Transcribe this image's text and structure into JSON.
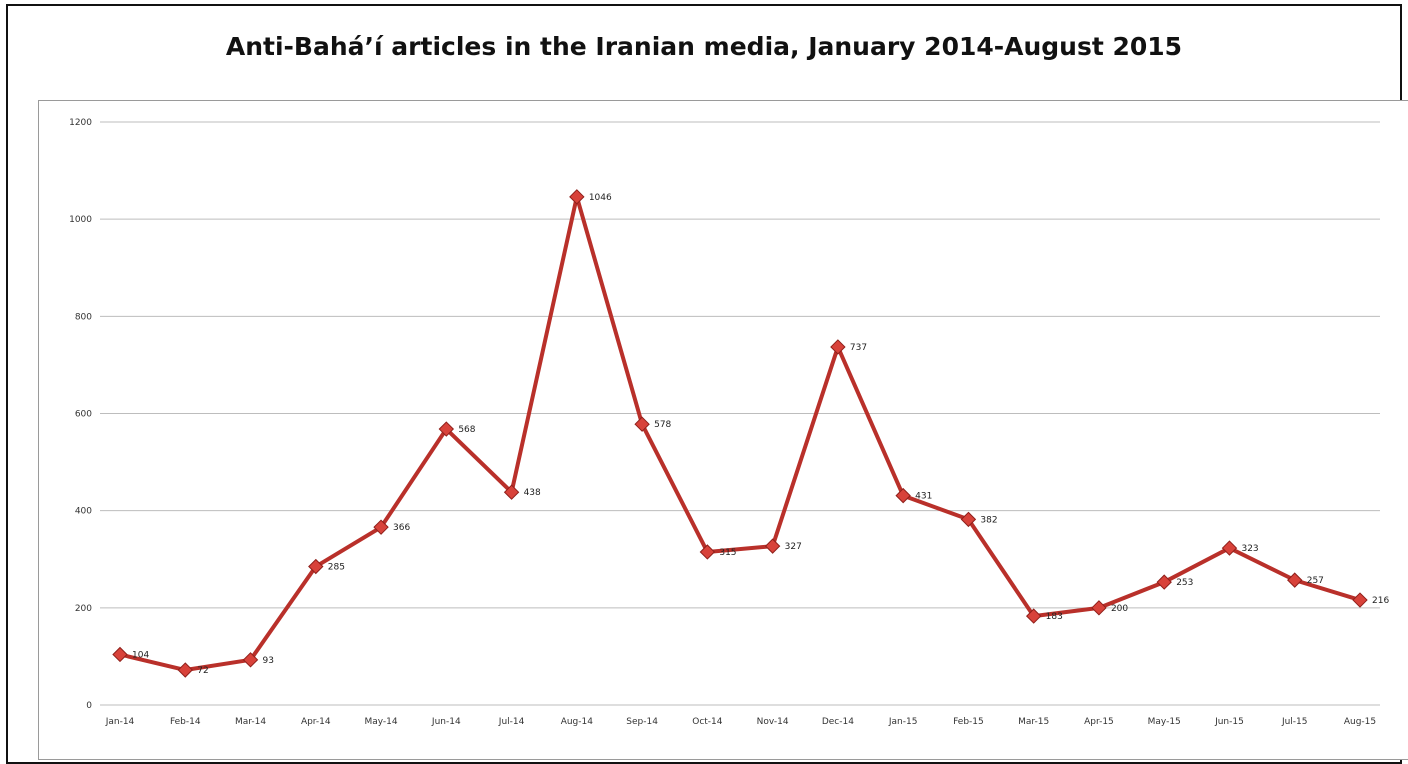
{
  "chart_data": {
    "type": "line",
    "title": "Anti-Bahá’í articles in the Iranian media, January 2014-August 2015",
    "xlabel": "",
    "ylabel": "",
    "categories": [
      "Jan-14",
      "Feb-14",
      "Mar-14",
      "Apr-14",
      "May-14",
      "Jun-14",
      "Jul-14",
      "Aug-14",
      "Sep-14",
      "Oct-14",
      "Nov-14",
      "Dec-14",
      "Jan-15",
      "Feb-15",
      "Mar-15",
      "Apr-15",
      "May-15",
      "Jun-15",
      "Jul-15",
      "Aug-15"
    ],
    "series": [
      {
        "values": [
          104,
          72,
          93,
          285,
          366,
          568,
          438,
          1046,
          578,
          315,
          327,
          737,
          431,
          382,
          183,
          200,
          253,
          323,
          257,
          216
        ],
        "labels": [
          "104",
          "72",
          "93",
          "285",
          "366",
          "568",
          "438",
          "1046",
          "578",
          "315",
          "327",
          "737",
          "431",
          "382",
          "183",
          "200",
          "253",
          "323",
          "257",
          "216"
        ]
      }
    ],
    "ylim": [
      0,
      1200
    ],
    "yticks": [
      "0",
      "200",
      "400",
      "600",
      "800",
      "1000",
      "1200"
    ],
    "grid": true,
    "legend": "none",
    "line_color": "#b9302a",
    "marker_color": "#d8423a",
    "grid_color": "#bdbdbd"
  }
}
